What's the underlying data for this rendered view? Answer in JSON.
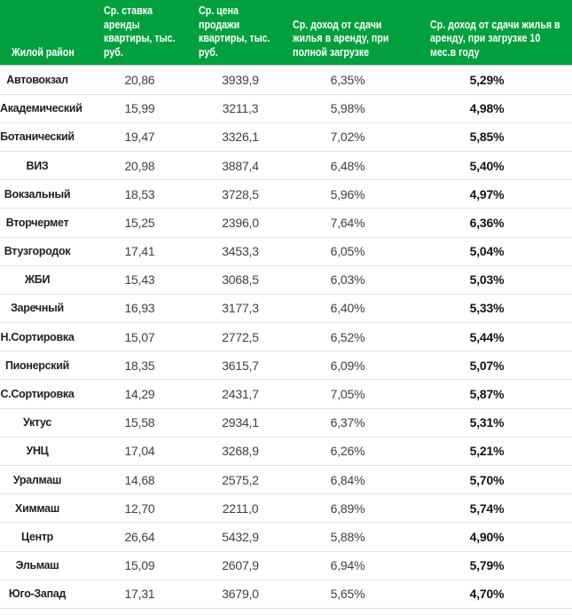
{
  "colors": {
    "header_bg": "#00a03c",
    "header_text": "#ffffff",
    "row_border": "#e3e3e3",
    "header_border": "#c7cdd1",
    "district_text": "#1f1f1f",
    "value_text": "#3f3f3f",
    "bold_value_text": "#141414"
  },
  "chart_data": {
    "type": "table",
    "title": "",
    "columns": [
      {
        "label": "Жилой район"
      },
      {
        "label": "Ср. ставка\nаренды\nквартиры, тыс.\nруб."
      },
      {
        "label": "Ср. цена\nпродажи\nквартиры, тыс.\nруб."
      },
      {
        "label": "Ср. доход от сдачи\nжилья в аренду, при\nполной загрузке"
      },
      {
        "label": "Ср. доход от сдачи жилья в\nаренду, при загрузке 10\nмес.в году"
      }
    ],
    "rows": [
      [
        "Автовокзал",
        "20,86",
        "3939,9",
        "6,35%",
        "5,29%"
      ],
      [
        "Академический",
        "15,99",
        "3211,3",
        "5,98%",
        "4,98%"
      ],
      [
        "Ботанический",
        "19,47",
        "3326,1",
        "7,02%",
        "5,85%"
      ],
      [
        "ВИЗ",
        "20,98",
        "3887,4",
        "6,48%",
        "5,40%"
      ],
      [
        "Вокзальный",
        "18,53",
        "3728,5",
        "5,96%",
        "4,97%"
      ],
      [
        "Вторчермет",
        "15,25",
        "2396,0",
        "7,64%",
        "6,36%"
      ],
      [
        "Втузгородок",
        "17,41",
        "3453,3",
        "6,05%",
        "5,04%"
      ],
      [
        "ЖБИ",
        "15,43",
        "3068,5",
        "6,03%",
        "5,03%"
      ],
      [
        "Заречный",
        "16,93",
        "3177,3",
        "6,40%",
        "5,33%"
      ],
      [
        "Н.Сортировка",
        "15,07",
        "2772,5",
        "6,52%",
        "5,44%"
      ],
      [
        "Пионерский",
        "18,35",
        "3615,7",
        "6,09%",
        "5,07%"
      ],
      [
        "С.Сортировка",
        "14,29",
        "2431,7",
        "7,05%",
        "5,87%"
      ],
      [
        "Уктус",
        "15,58",
        "2934,1",
        "6,37%",
        "5,31%"
      ],
      [
        "УНЦ",
        "17,04",
        "3268,9",
        "6,26%",
        "5,21%"
      ],
      [
        "Уралмаш",
        "14,68",
        "2575,2",
        "6,84%",
        "5,70%"
      ],
      [
        "Химмаш",
        "12,70",
        "2211,0",
        "6,89%",
        "5,74%"
      ],
      [
        "Центр",
        "26,64",
        "5432,9",
        "5,88%",
        "4,90%"
      ],
      [
        "Эльмаш",
        "15,09",
        "2607,9",
        "6,94%",
        "5,79%"
      ],
      [
        "Юго-Запад",
        "17,31",
        "3679,0",
        "5,65%",
        "4,70%"
      ]
    ]
  }
}
